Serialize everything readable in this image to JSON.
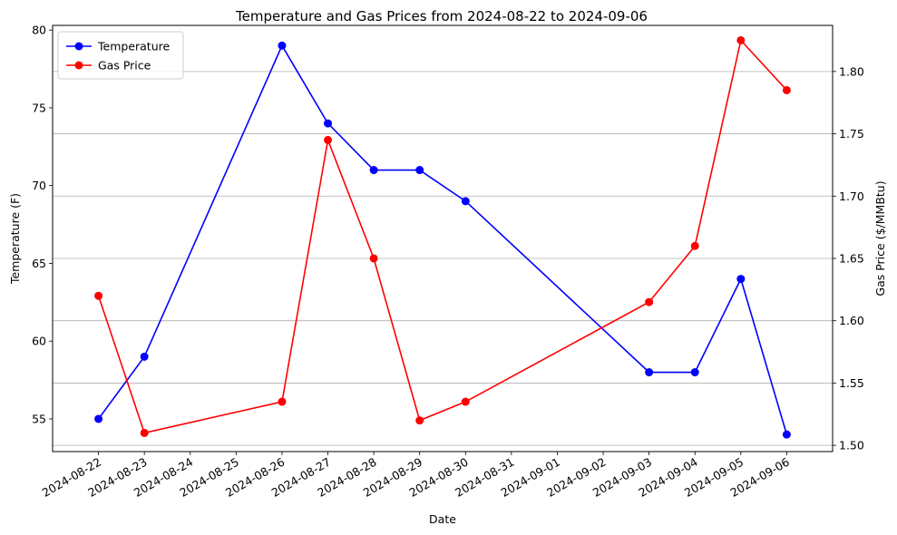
{
  "chart_data": {
    "type": "line",
    "title": "Temperature and Gas Prices from 2024-08-22 to 2024-09-06",
    "xlabel": "Date",
    "ylabel": "Temperature (F)",
    "y2label": "Gas Price ($/MMBtu)",
    "x_ticks": [
      "2024-08-22",
      "2024-08-23",
      "2024-08-24",
      "2024-08-25",
      "2024-08-26",
      "2024-08-27",
      "2024-08-28",
      "2024-08-29",
      "2024-08-30",
      "2024-08-31",
      "2024-09-01",
      "2024-09-02",
      "2024-09-03",
      "2024-09-04",
      "2024-09-05",
      "2024-09-06"
    ],
    "y_ticks": [
      55,
      60,
      65,
      70,
      75,
      80
    ],
    "y2_ticks": [
      "1.50",
      "1.55",
      "1.60",
      "1.65",
      "1.70",
      "1.75",
      "1.80"
    ],
    "ylim": [
      52.9,
      80.3
    ],
    "y2lim": [
      1.495,
      1.837
    ],
    "xlim": [
      "2024-08-21",
      "2024-09-07"
    ],
    "grid": "right axis horizontal lines",
    "legend_position": "top-left",
    "series": [
      {
        "name": "Temperature",
        "axis": "left",
        "color": "#0000ff",
        "x": [
          "2024-08-22",
          "2024-08-23",
          "2024-08-26",
          "2024-08-27",
          "2024-08-28",
          "2024-08-29",
          "2024-08-30",
          "2024-09-03",
          "2024-09-04",
          "2024-09-05",
          "2024-09-06"
        ],
        "values": [
          55,
          59,
          79,
          74,
          71,
          71,
          69,
          58,
          58,
          64,
          54
        ]
      },
      {
        "name": "Gas Price",
        "axis": "right",
        "color": "#ff0000",
        "x": [
          "2024-08-22",
          "2024-08-23",
          "2024-08-26",
          "2024-08-27",
          "2024-08-28",
          "2024-08-29",
          "2024-08-30",
          "2024-09-03",
          "2024-09-04",
          "2024-09-05",
          "2024-09-06"
        ],
        "values": [
          1.62,
          1.51,
          1.535,
          1.745,
          1.65,
          1.52,
          1.535,
          1.615,
          1.66,
          1.825,
          1.785
        ]
      }
    ]
  }
}
